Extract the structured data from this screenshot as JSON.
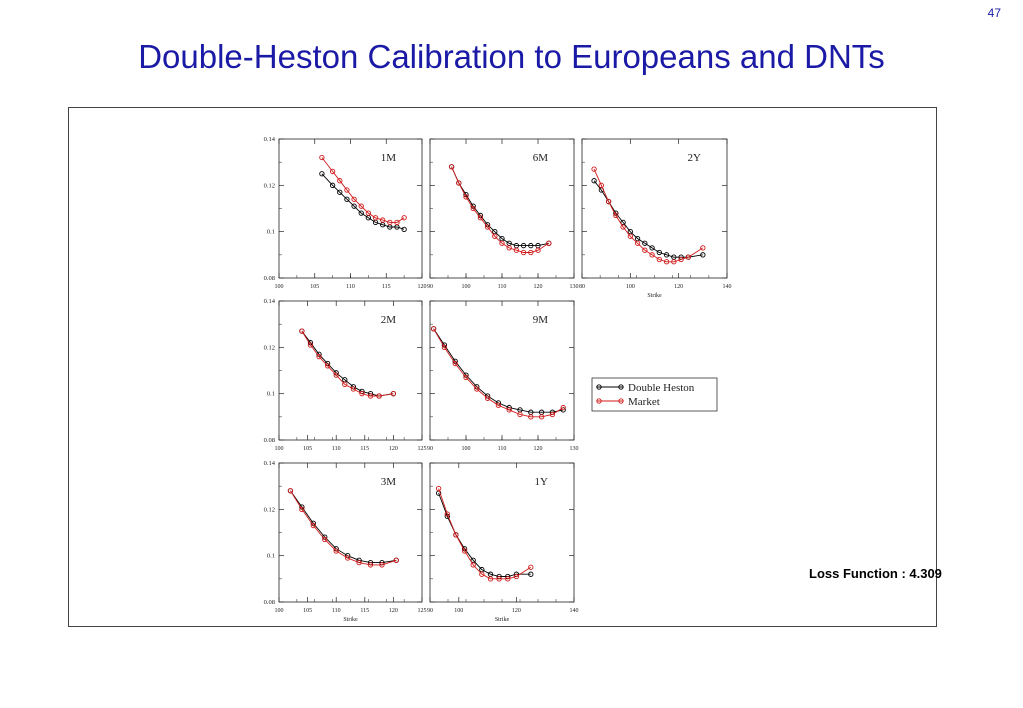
{
  "page": {
    "number": "47",
    "title": "Double-Heston Calibration to Europeans and DNTs"
  },
  "loss_function": "Loss Function : 4.309",
  "legend": {
    "items": [
      {
        "label": "Double Heston",
        "color": "#000000"
      },
      {
        "label": "Market",
        "color": "#d11a1a"
      }
    ]
  },
  "colors": {
    "model": "#000000",
    "market": "#d11a1a",
    "title": "#1a1aa6"
  },
  "chart_data": [
    {
      "type": "line",
      "panel": "1M",
      "xlim": [
        100,
        120
      ],
      "ylim": [
        0.08,
        0.14
      ],
      "xticks": [
        "100",
        "105",
        "110",
        "115",
        "120"
      ],
      "yticks": [
        "0.08",
        "0.1",
        "0.12",
        "0.14"
      ],
      "xlabel": "",
      "series": [
        {
          "name": "Double Heston",
          "x": [
            106,
            107.5,
            108.5,
            109.5,
            110.5,
            111.5,
            112.5,
            113.5,
            114.5,
            115.5,
            116.5,
            117.5
          ],
          "y": [
            0.125,
            0.12,
            0.117,
            0.114,
            0.111,
            0.108,
            0.106,
            0.104,
            0.103,
            0.102,
            0.102,
            0.101
          ]
        },
        {
          "name": "Market",
          "x": [
            106,
            107.5,
            108.5,
            109.5,
            110.5,
            111.5,
            112.5,
            113.5,
            114.5,
            115.5,
            116.5,
            117.5
          ],
          "y": [
            0.132,
            0.126,
            0.122,
            0.118,
            0.114,
            0.111,
            0.108,
            0.106,
            0.105,
            0.104,
            0.104,
            0.106
          ]
        }
      ]
    },
    {
      "type": "line",
      "panel": "6M",
      "xlim": [
        90,
        130
      ],
      "ylim": [
        0.08,
        0.14
      ],
      "xticks": [
        "90",
        "100",
        "110",
        "120",
        "130"
      ],
      "yticks": [],
      "xlabel": "",
      "series": [
        {
          "name": "Double Heston",
          "x": [
            96,
            98,
            100,
            102,
            104,
            106,
            108,
            110,
            112,
            114,
            116,
            118,
            120,
            123
          ],
          "y": [
            0.128,
            0.121,
            0.116,
            0.111,
            0.107,
            0.103,
            0.1,
            0.097,
            0.095,
            0.094,
            0.094,
            0.094,
            0.094,
            0.095
          ]
        },
        {
          "name": "Market",
          "x": [
            96,
            98,
            100,
            102,
            104,
            106,
            108,
            110,
            112,
            114,
            116,
            118,
            120,
            123
          ],
          "y": [
            0.128,
            0.121,
            0.115,
            0.11,
            0.106,
            0.102,
            0.098,
            0.095,
            0.093,
            0.092,
            0.091,
            0.091,
            0.092,
            0.095
          ]
        }
      ]
    },
    {
      "type": "line",
      "panel": "2Y",
      "xlim": [
        80,
        140
      ],
      "ylim": [
        0.08,
        0.14
      ],
      "xticks": [
        "80",
        "100",
        "120",
        "140"
      ],
      "yticks": [],
      "xlabel": "Strike",
      "series": [
        {
          "name": "Double Heston",
          "x": [
            85,
            88,
            91,
            94,
            97,
            100,
            103,
            106,
            109,
            112,
            115,
            118,
            121,
            124,
            130
          ],
          "y": [
            0.122,
            0.118,
            0.113,
            0.108,
            0.104,
            0.1,
            0.097,
            0.095,
            0.093,
            0.091,
            0.09,
            0.089,
            0.089,
            0.089,
            0.09
          ]
        },
        {
          "name": "Market",
          "x": [
            85,
            88,
            91,
            94,
            97,
            100,
            103,
            106,
            109,
            112,
            115,
            118,
            121,
            124,
            130
          ],
          "y": [
            0.127,
            0.12,
            0.113,
            0.107,
            0.102,
            0.098,
            0.095,
            0.092,
            0.09,
            0.088,
            0.087,
            0.087,
            0.088,
            0.089,
            0.093
          ]
        }
      ]
    },
    {
      "type": "line",
      "panel": "2M",
      "xlim": [
        100,
        125
      ],
      "ylim": [
        0.08,
        0.14
      ],
      "xticks": [
        "100",
        "105",
        "110",
        "115",
        "120",
        "125"
      ],
      "yticks": [
        "0.08",
        "0.1",
        "0.12",
        "0.14"
      ],
      "xlabel": "",
      "series": [
        {
          "name": "Double Heston",
          "x": [
            104,
            105.5,
            107,
            108.5,
            110,
            111.5,
            113,
            114.5,
            116,
            117.5,
            120
          ],
          "y": [
            0.127,
            0.122,
            0.117,
            0.113,
            0.109,
            0.106,
            0.103,
            0.101,
            0.1,
            0.099,
            0.1
          ]
        },
        {
          "name": "Market",
          "x": [
            104,
            105.5,
            107,
            108.5,
            110,
            111.5,
            113,
            114.5,
            116,
            117.5,
            120
          ],
          "y": [
            0.127,
            0.121,
            0.116,
            0.112,
            0.108,
            0.104,
            0.102,
            0.1,
            0.099,
            0.099,
            0.1
          ]
        }
      ]
    },
    {
      "type": "line",
      "panel": "9M",
      "xlim": [
        90,
        130
      ],
      "ylim": [
        0.08,
        0.14
      ],
      "xticks": [
        "90",
        "100",
        "110",
        "120",
        "130"
      ],
      "yticks": [],
      "xlabel": "",
      "series": [
        {
          "name": "Double Heston",
          "x": [
            91,
            94,
            97,
            100,
            103,
            106,
            109,
            112,
            115,
            118,
            121,
            124,
            127
          ],
          "y": [
            0.128,
            0.121,
            0.114,
            0.108,
            0.103,
            0.099,
            0.096,
            0.094,
            0.093,
            0.092,
            0.092,
            0.092,
            0.093
          ]
        },
        {
          "name": "Market",
          "x": [
            91,
            94,
            97,
            100,
            103,
            106,
            109,
            112,
            115,
            118,
            121,
            124,
            127
          ],
          "y": [
            0.128,
            0.12,
            0.113,
            0.107,
            0.102,
            0.098,
            0.095,
            0.093,
            0.091,
            0.09,
            0.09,
            0.091,
            0.094
          ]
        }
      ]
    },
    {
      "type": "line",
      "panel": "3M",
      "xlim": [
        100,
        125
      ],
      "ylim": [
        0.08,
        0.14
      ],
      "xticks": [
        "100",
        "105",
        "110",
        "115",
        "120",
        "125"
      ],
      "yticks": [
        "0.08",
        "0.1",
        "0.12",
        "0.14"
      ],
      "xlabel": "Strike",
      "series": [
        {
          "name": "Double Heston",
          "x": [
            102,
            104,
            106,
            108,
            110,
            112,
            114,
            116,
            118,
            120.5
          ],
          "y": [
            0.128,
            0.121,
            0.114,
            0.108,
            0.103,
            0.1,
            0.098,
            0.097,
            0.097,
            0.098
          ]
        },
        {
          "name": "Market",
          "x": [
            102,
            104,
            106,
            108,
            110,
            112,
            114,
            116,
            118,
            120.5
          ],
          "y": [
            0.128,
            0.12,
            0.113,
            0.107,
            0.102,
            0.099,
            0.097,
            0.096,
            0.096,
            0.098
          ]
        }
      ]
    },
    {
      "type": "line",
      "panel": "1Y",
      "xlim": [
        90,
        140
      ],
      "ylim": [
        0.08,
        0.14
      ],
      "xticks": [
        "90",
        "100",
        "120",
        "140"
      ],
      "yticks": [],
      "xlabel": "Strike",
      "series": [
        {
          "name": "Double Heston",
          "x": [
            93,
            96,
            99,
            102,
            105,
            108,
            111,
            114,
            117,
            120,
            125
          ],
          "y": [
            0.127,
            0.117,
            0.109,
            0.103,
            0.098,
            0.094,
            0.092,
            0.091,
            0.091,
            0.092,
            0.092
          ]
        },
        {
          "name": "Market",
          "x": [
            93,
            96,
            99,
            102,
            105,
            108,
            111,
            114,
            117,
            120,
            125
          ],
          "y": [
            0.129,
            0.118,
            0.109,
            0.102,
            0.096,
            0.092,
            0.09,
            0.09,
            0.09,
            0.091,
            0.095
          ]
        }
      ]
    }
  ]
}
